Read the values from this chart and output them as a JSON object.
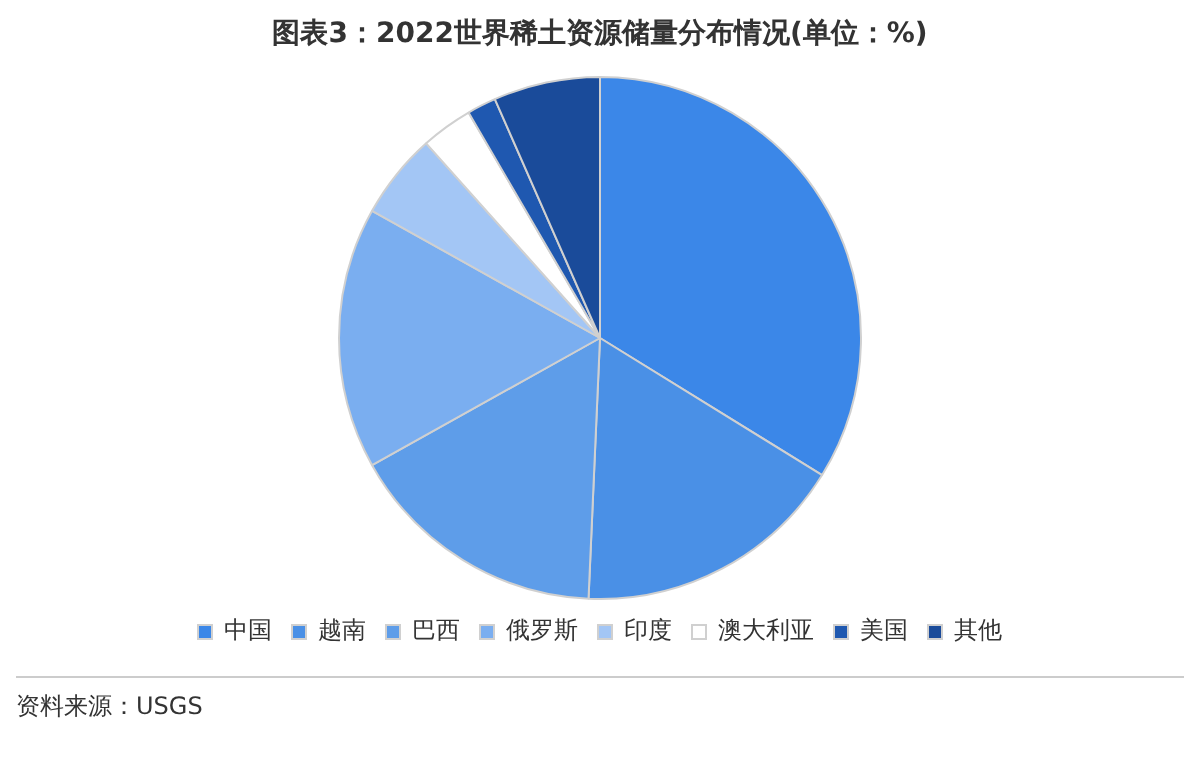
{
  "chart_data": {
    "type": "pie",
    "title": "图表3：2022世界稀土资源储量分布情况(单位：%)",
    "categories": [
      "中国",
      "越南",
      "巴西",
      "俄罗斯",
      "印度",
      "澳大利亚",
      "美国",
      "其他"
    ],
    "values": [
      33.8,
      16.9,
      16.2,
      16.2,
      5.3,
      3.2,
      1.8,
      6.6
    ],
    "colors": [
      "#3b87e8",
      "#4a90e6",
      "#5e9de9",
      "#7aaef0",
      "#a3c6f5",
      "#ffffff",
      "#1f58b0",
      "#1a4b9a"
    ],
    "legend": "bottom",
    "annotations": [
      "资料来源：USGS"
    ]
  }
}
